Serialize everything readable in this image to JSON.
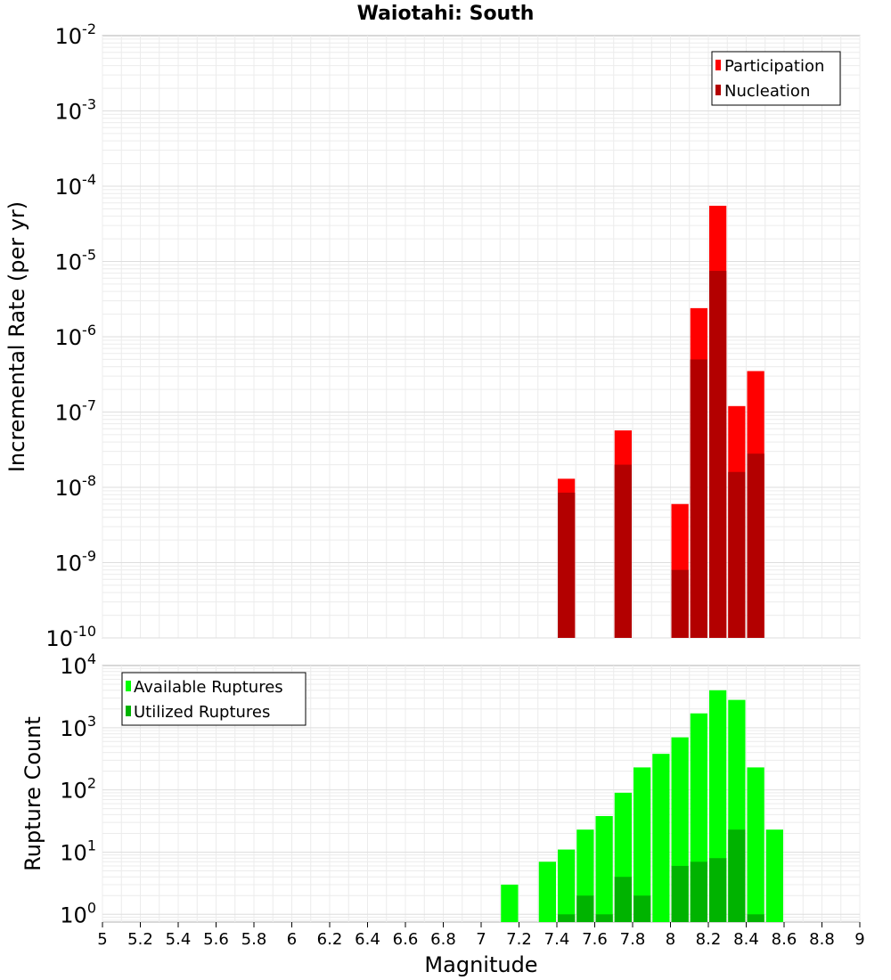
{
  "title": "Waiotahi: South",
  "xlabel": "Magnitude",
  "chart_data": [
    {
      "type": "bar",
      "title": "Waiotahi: South",
      "ylabel": "Incremental Rate (per yr)",
      "yscale": "log",
      "ylim": [
        1e-10,
        0.01
      ],
      "xlim": [
        5,
        9
      ],
      "grid": true,
      "legend_position": "top-right",
      "x": [
        7.45,
        7.75,
        8.05,
        8.15,
        8.25,
        8.35,
        8.45
      ],
      "series": [
        {
          "name": "Participation",
          "color": "#ff0000",
          "values": [
            1.3e-08,
            5.7e-08,
            6e-09,
            2.4e-06,
            5.5e-05,
            1.2e-07,
            3.5e-07
          ]
        },
        {
          "name": "Nucleation",
          "color": "#b30000",
          "values": [
            8.5e-09,
            2e-08,
            8e-10,
            5e-07,
            7.5e-06,
            1.6e-08,
            2.8e-08
          ]
        }
      ]
    },
    {
      "type": "bar",
      "ylabel": "Rupture Count",
      "yscale": "log",
      "ylim": [
        0.75,
        10000
      ],
      "xlim": [
        5,
        9
      ],
      "grid": true,
      "legend_position": "top-left",
      "x": [
        7.15,
        7.35,
        7.45,
        7.55,
        7.65,
        7.75,
        7.85,
        7.95,
        8.05,
        8.15,
        8.25,
        8.35,
        8.45,
        8.55
      ],
      "series": [
        {
          "name": "Available Ruptures",
          "color": "#00ff00",
          "values": [
            3,
            7,
            11,
            23,
            38,
            90,
            230,
            380,
            700,
            1700,
            4000,
            2800,
            230,
            23
          ]
        },
        {
          "name": "Utilized Ruptures",
          "color": "#00b300",
          "values": [
            null,
            null,
            1,
            2,
            1,
            4,
            2,
            null,
            6,
            7,
            8,
            23,
            1,
            null
          ]
        }
      ]
    }
  ],
  "x_ticks": [
    "5",
    "5.2",
    "5.4",
    "5.6",
    "5.8",
    "6",
    "6.2",
    "6.4",
    "6.6",
    "6.8",
    "7",
    "7.2",
    "7.4",
    "7.6",
    "7.8",
    "8",
    "8.2",
    "8.4",
    "8.6",
    "8.8",
    "9"
  ],
  "top_y_ticks": {
    "base": "10",
    "exponents": [
      "-10",
      "-9",
      "-8",
      "-7",
      "-6",
      "-5",
      "-4",
      "-3",
      "-2"
    ]
  },
  "bottom_y_ticks": {
    "base": "10",
    "exponents": [
      "0",
      "1",
      "2",
      "3",
      "4"
    ]
  }
}
